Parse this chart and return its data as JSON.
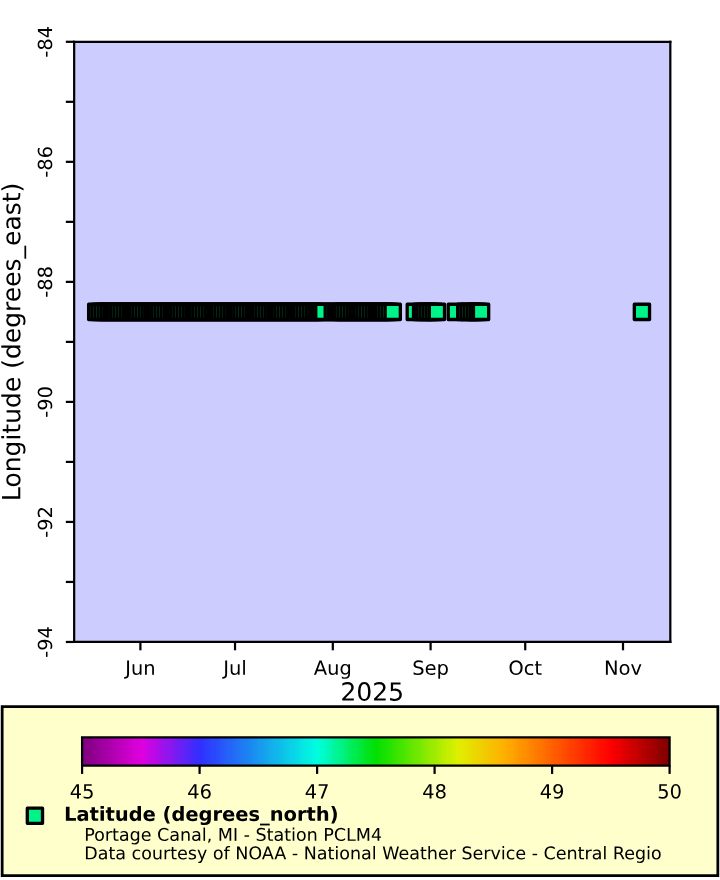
{
  "chart_data": {
    "type": "scatter",
    "xlabel": "2025",
    "ylabel": "Longitude (degrees_east)",
    "x": [
      "2025-05-18",
      "2025-05-19",
      "2025-05-20",
      "2025-05-21",
      "2025-05-22",
      "2025-05-23",
      "2025-05-24",
      "2025-05-25",
      "2025-05-26",
      "2025-05-27",
      "2025-05-28",
      "2025-05-29",
      "2025-05-30",
      "2025-05-31",
      "2025-06-01",
      "2025-06-02",
      "2025-06-03",
      "2025-06-04",
      "2025-06-05",
      "2025-06-06",
      "2025-06-07",
      "2025-06-08",
      "2025-06-09",
      "2025-06-10",
      "2025-06-11",
      "2025-06-12",
      "2025-06-13",
      "2025-06-14",
      "2025-06-15",
      "2025-06-16",
      "2025-06-17",
      "2025-06-18",
      "2025-06-19",
      "2025-06-20",
      "2025-06-21",
      "2025-06-22",
      "2025-06-23",
      "2025-06-24",
      "2025-06-25",
      "2025-06-26",
      "2025-06-27",
      "2025-06-28",
      "2025-06-29",
      "2025-06-30",
      "2025-07-01",
      "2025-07-02",
      "2025-07-03",
      "2025-07-04",
      "2025-07-05",
      "2025-07-06",
      "2025-07-07",
      "2025-07-08",
      "2025-07-09",
      "2025-07-10",
      "2025-07-11",
      "2025-07-12",
      "2025-07-13",
      "2025-07-14",
      "2025-07-15",
      "2025-07-16",
      "2025-07-17",
      "2025-07-18",
      "2025-07-19",
      "2025-07-20",
      "2025-07-21",
      "2025-07-22",
      "2025-07-23",
      "2025-07-24",
      "2025-07-25",
      "2025-07-26",
      "2025-07-27",
      "2025-07-28",
      "2025-07-29",
      "2025-08-01",
      "2025-08-02",
      "2025-08-03",
      "2025-08-04",
      "2025-08-05",
      "2025-08-06",
      "2025-08-07",
      "2025-08-08",
      "2025-08-09",
      "2025-08-10",
      "2025-08-11",
      "2025-08-12",
      "2025-08-13",
      "2025-08-14",
      "2025-08-15",
      "2025-08-16",
      "2025-08-17",
      "2025-08-18",
      "2025-08-19",
      "2025-08-20",
      "2025-08-27",
      "2025-08-29",
      "2025-08-30",
      "2025-08-31",
      "2025-09-01",
      "2025-09-02",
      "2025-09-03",
      "2025-09-09",
      "2025-09-12",
      "2025-09-13",
      "2025-09-14",
      "2025-09-15",
      "2025-09-16",
      "2025-09-17",
      "2025-11-07"
    ],
    "series": [
      {
        "name": "Latitude (degrees_north)",
        "values": [
          -88.5,
          -88.5,
          -88.5,
          -88.5,
          -88.5,
          -88.5,
          -88.5,
          -88.5,
          -88.5,
          -88.5,
          -88.5,
          -88.5,
          -88.5,
          -88.5,
          -88.5,
          -88.5,
          -88.5,
          -88.5,
          -88.5,
          -88.5,
          -88.5,
          -88.5,
          -88.5,
          -88.5,
          -88.5,
          -88.5,
          -88.5,
          -88.5,
          -88.5,
          -88.5,
          -88.5,
          -88.5,
          -88.5,
          -88.5,
          -88.5,
          -88.5,
          -88.5,
          -88.5,
          -88.5,
          -88.5,
          -88.5,
          -88.5,
          -88.5,
          -88.5,
          -88.5,
          -88.5,
          -88.5,
          -88.5,
          -88.5,
          -88.5,
          -88.5,
          -88.5,
          -88.5,
          -88.5,
          -88.5,
          -88.5,
          -88.5,
          -88.5,
          -88.5,
          -88.5,
          -88.5,
          -88.5,
          -88.5,
          -88.5,
          -88.5,
          -88.5,
          -88.5,
          -88.5,
          -88.5,
          -88.5,
          -88.5,
          -88.5,
          -88.5,
          -88.5,
          -88.5,
          -88.5,
          -88.5,
          -88.5,
          -88.5,
          -88.5,
          -88.5,
          -88.5,
          -88.5,
          -88.5,
          -88.5,
          -88.5,
          -88.5,
          -88.5,
          -88.5,
          -88.5,
          -88.5,
          -88.5,
          -88.5,
          -88.5,
          -88.5,
          -88.5,
          -88.5,
          -88.5,
          -88.5,
          -88.5,
          -88.5,
          -88.5,
          -88.5,
          -88.5,
          -88.5,
          -88.5,
          -88.5,
          -88.5
        ],
        "cvalues": [
          47.2,
          47.2,
          47.2,
          47.2,
          47.2,
          47.2,
          47.2,
          47.2,
          47.2,
          47.2,
          47.2,
          47.2,
          47.2,
          47.2,
          47.2,
          47.2,
          47.2,
          47.2,
          47.2,
          47.2,
          47.2,
          47.2,
          47.2,
          47.2,
          47.2,
          47.2,
          47.2,
          47.2,
          47.2,
          47.2,
          47.2,
          47.2,
          47.2,
          47.2,
          47.2,
          47.2,
          47.2,
          47.2,
          47.2,
          47.2,
          47.2,
          47.2,
          47.2,
          47.2,
          47.2,
          47.2,
          47.2,
          47.2,
          47.2,
          47.2,
          47.2,
          47.2,
          47.2,
          47.2,
          47.2,
          47.2,
          47.2,
          47.2,
          47.2,
          47.2,
          47.2,
          47.2,
          47.2,
          47.2,
          47.2,
          47.2,
          47.2,
          47.2,
          47.2,
          47.2,
          47.2,
          47.2,
          47.2,
          47.2,
          47.2,
          47.2,
          47.2,
          47.2,
          47.2,
          47.2,
          47.2,
          47.2,
          47.2,
          47.2,
          47.2,
          47.2,
          47.2,
          47.2,
          47.2,
          47.2,
          47.2,
          47.2,
          47.2,
          47.2,
          47.2,
          47.2,
          47.2,
          47.2,
          47.2,
          47.2,
          47.2,
          47.2,
          47.2,
          47.2,
          47.2,
          47.2,
          47.2,
          47.2
        ]
      }
    ],
    "xlim": [
      "2025-05-11",
      "2025-11-16"
    ],
    "xticks": [
      {
        "value": "2025-06-01",
        "label": "Jun"
      },
      {
        "value": "2025-07-01",
        "label": "Jul"
      },
      {
        "value": "2025-08-01",
        "label": "Aug"
      },
      {
        "value": "2025-09-01",
        "label": "Sep"
      },
      {
        "value": "2025-10-01",
        "label": "Oct"
      },
      {
        "value": "2025-11-01",
        "label": "Nov"
      }
    ],
    "ylim": [
      -94,
      -84
    ],
    "yticks": [
      -94,
      {
        "value": -93,
        "label": null
      },
      -92,
      {
        "value": -91,
        "label": null
      },
      -90,
      {
        "value": -89,
        "label": null
      },
      -88,
      {
        "value": -87,
        "label": null
      },
      -86,
      {
        "value": -85,
        "label": null
      },
      -84
    ],
    "clim": [
      45,
      50
    ],
    "cticks": [
      45,
      46,
      47,
      48,
      49,
      50
    ],
    "marker": "square",
    "legend": "bottom left",
    "grid": false,
    "annotations": [
      "Portage Canal, MI - Station PCLM4",
      "Data courtesy of NOAA - National Weather Service - Central Regio"
    ]
  }
}
